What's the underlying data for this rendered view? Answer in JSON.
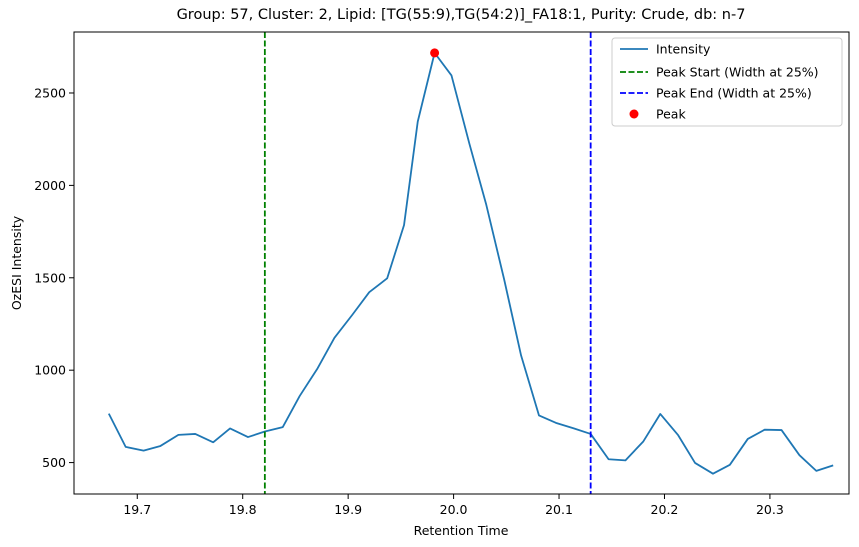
{
  "chart_data": {
    "type": "line",
    "title": "Group: 57, Cluster: 2, Lipid: [TG(55:9),TG(54:2)]_FA18:1, Purity: Crude, db: n-7",
    "xlabel": "Retention Time",
    "ylabel": "OzESI Intensity",
    "xlim": [
      19.64,
      20.375
    ],
    "ylim": [
      330,
      2830
    ],
    "xticks": [
      19.7,
      19.8,
      19.9,
      20.0,
      20.1,
      20.2,
      20.3
    ],
    "xtick_labels": [
      "19.7",
      "19.8",
      "19.9",
      "20.0",
      "20.1",
      "20.2",
      "20.3"
    ],
    "yticks": [
      500,
      1000,
      1500,
      2000,
      2500
    ],
    "ytick_labels": [
      "500",
      "1000",
      "1500",
      "2000",
      "2500"
    ],
    "grid": false,
    "legend_position": "top-right",
    "series": [
      {
        "name": "Intensity",
        "color": "#1f77b4",
        "style": "solid",
        "x": [
          19.673,
          19.689,
          19.706,
          19.722,
          19.739,
          19.755,
          19.772,
          19.788,
          19.805,
          19.821,
          19.838,
          19.854,
          19.871,
          19.887,
          19.904,
          19.92,
          19.937,
          19.953,
          19.966,
          19.982,
          19.998,
          20.015,
          20.031,
          20.048,
          20.064,
          20.081,
          20.097,
          20.114,
          20.13,
          20.147,
          20.163,
          20.18,
          20.196,
          20.213,
          20.229,
          20.246,
          20.262,
          20.279,
          20.295,
          20.311,
          20.328,
          20.344,
          20.36
        ],
        "y": [
          765,
          585,
          565,
          590,
          650,
          655,
          610,
          685,
          638,
          668,
          692,
          860,
          1010,
          1175,
          1300,
          1422,
          1497,
          1785,
          2345,
          2717,
          2595,
          2225,
          1895,
          1490,
          1080,
          755,
          715,
          685,
          655,
          518,
          512,
          615,
          763,
          648,
          498,
          440,
          488,
          628,
          678,
          676,
          540,
          455,
          485
        ]
      },
      {
        "name": "Peak Start (Width at 25%)",
        "color": "#008000",
        "style": "dashed",
        "vline_x": 19.821
      },
      {
        "name": "Peak End (Width at 25%)",
        "color": "#0000ff",
        "style": "dashed",
        "vline_x": 20.13
      },
      {
        "name": "Peak",
        "color": "#ff0000",
        "style": "marker",
        "x": [
          19.982
        ],
        "y": [
          2717
        ]
      }
    ]
  }
}
